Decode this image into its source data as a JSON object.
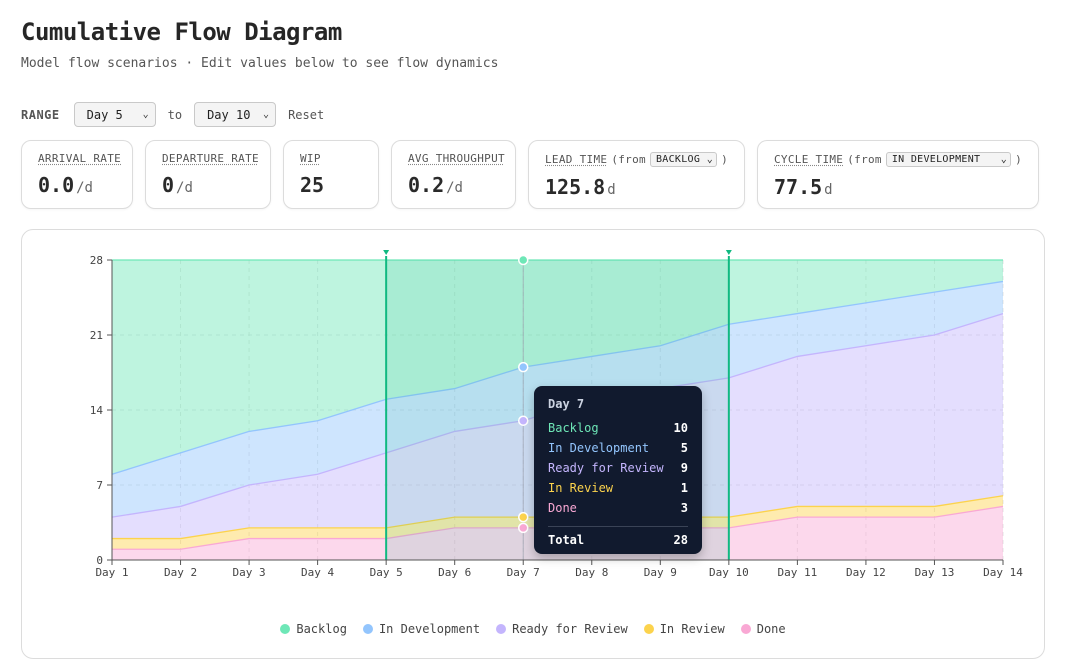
{
  "header": {
    "title": "Cumulative Flow Diagram",
    "subtitle": "Model flow scenarios · Edit values below to see flow dynamics"
  },
  "range": {
    "label": "RANGE",
    "from": "Day 5",
    "to_label": "to",
    "to": "Day 10",
    "reset": "Reset"
  },
  "stats": {
    "arrival": {
      "label": "ARRIVAL RATE",
      "value": "0.0",
      "unit": "/d"
    },
    "departure": {
      "label": "DEPARTURE RATE",
      "value": "0",
      "unit": "/d"
    },
    "wip": {
      "label": "WIP",
      "value": "25"
    },
    "throughput": {
      "label": "AVG THROUGHPUT",
      "value": "0.2",
      "unit": "/d"
    },
    "lead": {
      "label": "LEAD TIME",
      "from_text": "(from",
      "select": "BACKLOG",
      "close": ")",
      "value": "125.8",
      "unit": "d"
    },
    "cycle": {
      "label": "CYCLE TIME",
      "from_text": "(from",
      "select": "IN DEVELOPMENT",
      "close": ")",
      "value": "77.5",
      "unit": "d"
    }
  },
  "tooltip": {
    "title": "Day 7",
    "rows": [
      {
        "label": "Backlog",
        "value": "10",
        "color": "#6ee7b7"
      },
      {
        "label": "In Development",
        "value": "5",
        "color": "#93c5fd"
      },
      {
        "label": "Ready for Review",
        "value": "9",
        "color": "#c4b5fd"
      },
      {
        "label": "In Review",
        "value": "1",
        "color": "#fcd34d"
      },
      {
        "label": "Done",
        "value": "3",
        "color": "#f9a8d4"
      }
    ],
    "total_label": "Total",
    "total_value": "28"
  },
  "legend": [
    {
      "name": "Backlog",
      "color": "#6ee7b7"
    },
    {
      "name": "In Development",
      "color": "#93c5fd"
    },
    {
      "name": "Ready for Review",
      "color": "#c4b5fd"
    },
    {
      "name": "In Review",
      "color": "#fcd34d"
    },
    {
      "name": "Done",
      "color": "#f9a8d4"
    }
  ],
  "chart_data": {
    "type": "area",
    "stacked": true,
    "categories": [
      "Day 1",
      "Day 2",
      "Day 3",
      "Day 4",
      "Day 5",
      "Day 6",
      "Day 7",
      "Day 8",
      "Day 9",
      "Day 10",
      "Day 11",
      "Day 12",
      "Day 13",
      "Day 14"
    ],
    "yticks": [
      0,
      7,
      14,
      21,
      28
    ],
    "ylim": [
      0,
      28
    ],
    "grid": true,
    "range_start": "Day 5",
    "range_end": "Day 10",
    "hover_day": "Day 7",
    "series": [
      {
        "name": "Done",
        "color": "#f9a8d4",
        "values": [
          1,
          1,
          2,
          2,
          2,
          3,
          3,
          3,
          3,
          3,
          4,
          4,
          4,
          5
        ]
      },
      {
        "name": "In Review",
        "color": "#fcd34d",
        "values": [
          1,
          1,
          1,
          1,
          1,
          1,
          1,
          1,
          1,
          1,
          1,
          1,
          1,
          1
        ]
      },
      {
        "name": "Ready for Review",
        "color": "#c4b5fd",
        "values": [
          2,
          3,
          4,
          5,
          7,
          8,
          9,
          11,
          12,
          13,
          14,
          15,
          16,
          17
        ]
      },
      {
        "name": "In Development",
        "color": "#93c5fd",
        "values": [
          4,
          5,
          5,
          5,
          5,
          4,
          5,
          4,
          4,
          5,
          4,
          4,
          4,
          3
        ]
      },
      {
        "name": "Backlog",
        "color": "#6ee7b7",
        "values": [
          20,
          18,
          16,
          15,
          13,
          12,
          10,
          9,
          8,
          6,
          5,
          4,
          3,
          2
        ]
      }
    ]
  }
}
